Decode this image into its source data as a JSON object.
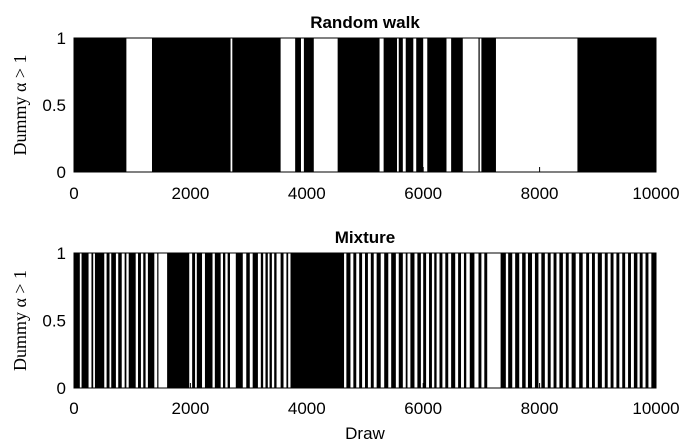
{
  "chart_data": [
    {
      "type": "bar",
      "title": "Random walk",
      "xlabel": "",
      "ylabel": "Dummy α > 1",
      "xlim": [
        0,
        10000
      ],
      "ylim": [
        0,
        1
      ],
      "xticks": [
        "0",
        "2000",
        "4000",
        "6000",
        "8000",
        "10000"
      ],
      "yticks": [
        "0",
        "0.5",
        "1"
      ],
      "value": 1,
      "intervals": [
        [
          0,
          900
        ],
        [
          1340,
          2690
        ],
        [
          2720,
          3550
        ],
        [
          3800,
          3900
        ],
        [
          3950,
          4120
        ],
        [
          4530,
          5250
        ],
        [
          5320,
          5550
        ],
        [
          5580,
          5650
        ],
        [
          5700,
          5830
        ],
        [
          5880,
          6000
        ],
        [
          6070,
          6400
        ],
        [
          6480,
          6680
        ],
        [
          6950,
          6960
        ],
        [
          7000,
          7250
        ],
        [
          8650,
          10000
        ]
      ]
    },
    {
      "type": "bar",
      "title": "Mixture",
      "xlabel": "Draw",
      "ylabel": "Dummy α > 1",
      "xlim": [
        0,
        10000
      ],
      "ylim": [
        0,
        1
      ],
      "xticks": [
        "0",
        "2000",
        "4000",
        "6000",
        "8000",
        "10000"
      ],
      "yticks": [
        "0",
        "0.5",
        "1"
      ],
      "value": 1,
      "intervals": [
        [
          0,
          100
        ],
        [
          130,
          250
        ],
        [
          300,
          330
        ],
        [
          360,
          520
        ],
        [
          560,
          610
        ],
        [
          640,
          720
        ],
        [
          760,
          820
        ],
        [
          870,
          900
        ],
        [
          940,
          1060
        ],
        [
          1100,
          1150
        ],
        [
          1190,
          1230
        ],
        [
          1270,
          1380
        ],
        [
          1430,
          1450
        ],
        [
          1600,
          1980
        ],
        [
          2030,
          2080
        ],
        [
          2110,
          2200
        ],
        [
          2250,
          2380
        ],
        [
          2420,
          2520
        ],
        [
          2560,
          2600
        ],
        [
          2640,
          2680
        ],
        [
          2780,
          2900
        ],
        [
          2960,
          3020
        ],
        [
          3070,
          3160
        ],
        [
          3210,
          3250
        ],
        [
          3290,
          3330
        ],
        [
          3360,
          3400
        ],
        [
          3440,
          3480
        ],
        [
          3550,
          3600
        ],
        [
          3650,
          3680
        ],
        [
          3720,
          4640
        ],
        [
          4680,
          4750
        ],
        [
          4800,
          4850
        ],
        [
          4900,
          4950
        ],
        [
          5000,
          5050
        ],
        [
          5100,
          5150
        ],
        [
          5200,
          5270
        ],
        [
          5330,
          5400
        ],
        [
          5450,
          5530
        ],
        [
          5580,
          5650
        ],
        [
          5700,
          5730
        ],
        [
          5780,
          5850
        ],
        [
          5900,
          5960
        ],
        [
          6000,
          6050
        ],
        [
          6100,
          6150
        ],
        [
          6190,
          6230
        ],
        [
          6280,
          6330
        ],
        [
          6380,
          6430
        ],
        [
          6480,
          6550
        ],
        [
          6600,
          6650
        ],
        [
          6700,
          6740
        ],
        [
          6800,
          6880
        ],
        [
          6950,
          7000
        ],
        [
          7050,
          7100
        ],
        [
          7330,
          7420
        ],
        [
          7460,
          7530
        ],
        [
          7580,
          7650
        ],
        [
          7700,
          7760
        ],
        [
          7800,
          7870
        ],
        [
          7920,
          7980
        ],
        [
          8030,
          8090
        ],
        [
          8140,
          8190
        ],
        [
          8240,
          8290
        ],
        [
          8340,
          8400
        ],
        [
          8450,
          8500
        ],
        [
          8550,
          8620
        ],
        [
          8680,
          8740
        ],
        [
          8800,
          8850
        ],
        [
          8900,
          8950
        ],
        [
          9000,
          9070
        ],
        [
          9120,
          9170
        ],
        [
          9220,
          9270
        ],
        [
          9320,
          9370
        ],
        [
          9420,
          9470
        ],
        [
          9520,
          9570
        ],
        [
          9620,
          9680
        ],
        [
          9720,
          9770
        ],
        [
          9820,
          9870
        ],
        [
          9920,
          10000
        ]
      ]
    }
  ]
}
